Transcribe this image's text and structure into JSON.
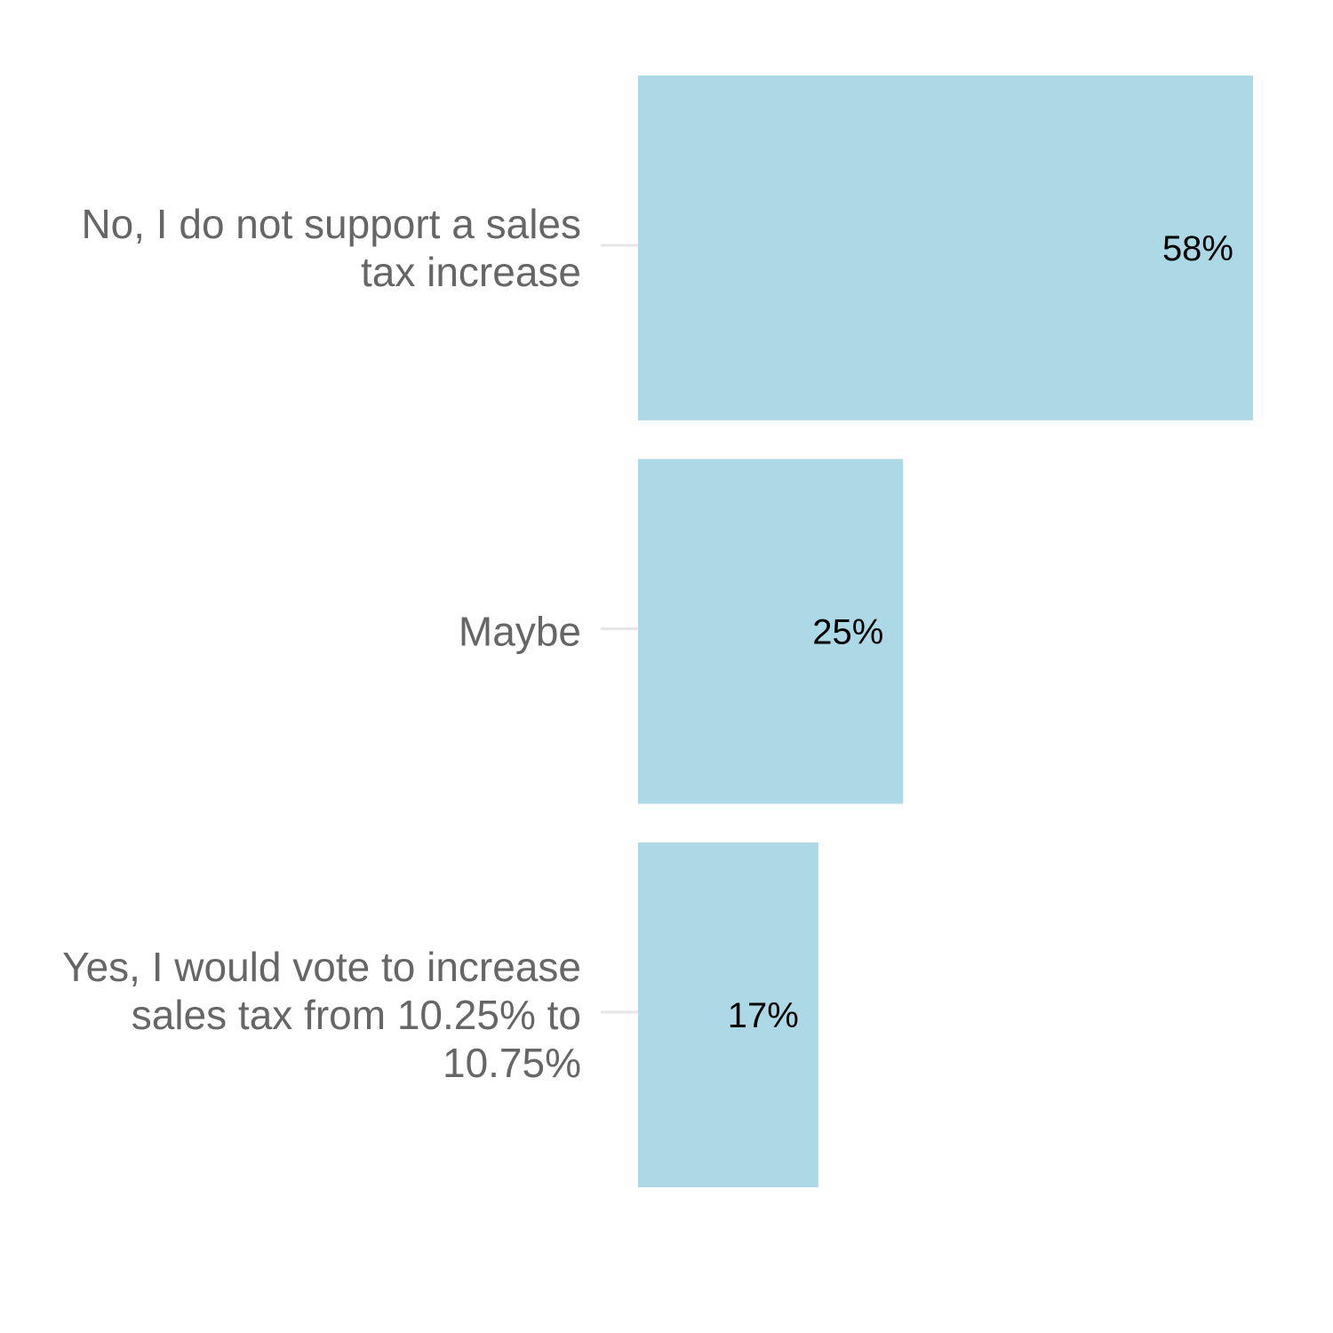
{
  "chart_data": {
    "type": "bar",
    "orientation": "horizontal",
    "categories": [
      "No, I do not support a sales tax increase",
      "Maybe",
      "Yes, I would vote to increase sales tax from 10.25% to 10.75%"
    ],
    "category_label_lines": [
      [
        "No, I do not support a sales",
        "tax increase"
      ],
      [
        "Maybe"
      ],
      [
        "Yes, I would vote to increase",
        "sales tax from 10.25% to",
        "10.75%"
      ]
    ],
    "values": [
      58,
      25,
      17
    ],
    "value_labels": [
      "58%",
      "25%",
      "17%"
    ],
    "unit": "%",
    "xlim": [
      0,
      58
    ],
    "bar_color": "#add8e6",
    "grid": false,
    "legend": "none",
    "title": "",
    "xlabel": "",
    "ylabel": ""
  }
}
